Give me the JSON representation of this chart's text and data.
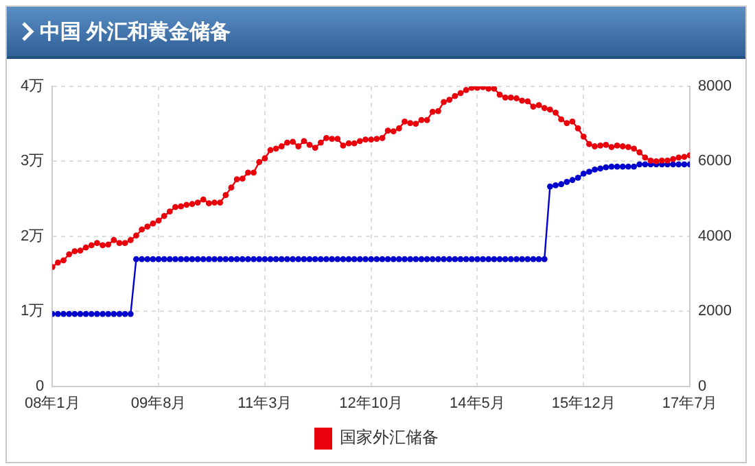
{
  "chart_data": {
    "type": "line",
    "title": "中国 外汇和黄金储备",
    "x": [
      "2008-01",
      "2008-02",
      "2008-03",
      "2008-04",
      "2008-05",
      "2008-06",
      "2008-07",
      "2008-08",
      "2008-09",
      "2008-10",
      "2008-11",
      "2008-12",
      "2009-01",
      "2009-02",
      "2009-03",
      "2009-04",
      "2009-05",
      "2009-06",
      "2009-07",
      "2009-08",
      "2009-09",
      "2009-10",
      "2009-11",
      "2009-12",
      "2010-01",
      "2010-02",
      "2010-03",
      "2010-04",
      "2010-05",
      "2010-06",
      "2010-07",
      "2010-08",
      "2010-09",
      "2010-10",
      "2010-11",
      "2010-12",
      "2011-01",
      "2011-02",
      "2011-03",
      "2011-04",
      "2011-05",
      "2011-06",
      "2011-07",
      "2011-08",
      "2011-09",
      "2011-10",
      "2011-11",
      "2011-12",
      "2012-01",
      "2012-02",
      "2012-03",
      "2012-04",
      "2012-05",
      "2012-06",
      "2012-07",
      "2012-08",
      "2012-09",
      "2012-10",
      "2012-11",
      "2012-12",
      "2013-01",
      "2013-02",
      "2013-03",
      "2013-04",
      "2013-05",
      "2013-06",
      "2013-07",
      "2013-08",
      "2013-09",
      "2013-10",
      "2013-11",
      "2013-12",
      "2014-01",
      "2014-02",
      "2014-03",
      "2014-04",
      "2014-05",
      "2014-06",
      "2014-07",
      "2014-08",
      "2014-09",
      "2014-10",
      "2014-11",
      "2014-12",
      "2015-01",
      "2015-02",
      "2015-03",
      "2015-04",
      "2015-05",
      "2015-06",
      "2015-07",
      "2015-08",
      "2015-09",
      "2015-10",
      "2015-11",
      "2015-12",
      "2016-01",
      "2016-02",
      "2016-03",
      "2016-04",
      "2016-05",
      "2016-06",
      "2016-07",
      "2016-08",
      "2016-09",
      "2016-10",
      "2016-11",
      "2016-12",
      "2017-01",
      "2017-02",
      "2017-03",
      "2017-04",
      "2017-05",
      "2017-06",
      "2017-07"
    ],
    "series": [
      {
        "name": "国家外汇储备",
        "color": "#e8000b",
        "values": [
          1.59,
          1.65,
          1.68,
          1.76,
          1.8,
          1.81,
          1.85,
          1.88,
          1.91,
          1.88,
          1.89,
          1.95,
          1.91,
          1.91,
          1.95,
          2.01,
          2.09,
          2.13,
          2.17,
          2.21,
          2.27,
          2.33,
          2.39,
          2.4,
          2.42,
          2.43,
          2.45,
          2.49,
          2.44,
          2.45,
          2.45,
          2.55,
          2.65,
          2.76,
          2.77,
          2.85,
          2.85,
          2.99,
          3.04,
          3.15,
          3.17,
          3.2,
          3.25,
          3.26,
          3.2,
          3.27,
          3.22,
          3.18,
          3.25,
          3.31,
          3.3,
          3.3,
          3.21,
          3.24,
          3.24,
          3.27,
          3.29,
          3.29,
          3.3,
          3.31,
          3.41,
          3.4,
          3.44,
          3.53,
          3.51,
          3.5,
          3.55,
          3.55,
          3.66,
          3.67,
          3.79,
          3.82,
          3.87,
          3.91,
          3.95,
          3.98,
          3.98,
          3.99,
          3.97,
          3.97,
          3.89,
          3.85,
          3.85,
          3.84,
          3.81,
          3.8,
          3.73,
          3.75,
          3.71,
          3.69,
          3.65,
          3.56,
          3.51,
          3.53,
          3.44,
          3.33,
          3.23,
          3.2,
          3.21,
          3.22,
          3.19,
          3.21,
          3.2,
          3.19,
          3.17,
          3.12,
          3.05,
          3.01,
          3,
          3.01,
          3.01,
          3.03,
          3.05,
          3.06,
          3.08
        ]
      },
      {
        "color": "#0000cc",
        "axis": "y2",
        "values": [
          1930,
          1930,
          1930,
          1930,
          1930,
          1930,
          1930,
          1930,
          1930,
          1930,
          1930,
          1930,
          1930,
          1930,
          1930,
          3390,
          3390,
          3390,
          3390,
          3390,
          3390,
          3390,
          3390,
          3390,
          3390,
          3390,
          3390,
          3390,
          3390,
          3390,
          3390,
          3390,
          3390,
          3390,
          3390,
          3390,
          3390,
          3390,
          3390,
          3390,
          3390,
          3390,
          3390,
          3390,
          3390,
          3390,
          3390,
          3390,
          3390,
          3390,
          3390,
          3390,
          3390,
          3390,
          3390,
          3390,
          3390,
          3390,
          3390,
          3390,
          3390,
          3390,
          3390,
          3390,
          3390,
          3390,
          3390,
          3390,
          3390,
          3390,
          3390,
          3390,
          3390,
          3390,
          3390,
          3390,
          3390,
          3390,
          3390,
          3390,
          3390,
          3390,
          3390,
          3390,
          3390,
          3390,
          3390,
          3390,
          3390,
          5330,
          5360,
          5390,
          5450,
          5500,
          5560,
          5670,
          5720,
          5780,
          5810,
          5840,
          5860,
          5860,
          5860,
          5860,
          5860,
          5920,
          5920,
          5920,
          5920,
          5920,
          5920,
          5920,
          5920,
          5920,
          5920
        ]
      }
    ],
    "xlim": [
      "2008-01",
      "2017-07"
    ],
    "xticks": [
      {
        "value": "2008-01",
        "label": "08年1月"
      },
      {
        "value": "2009-08",
        "label": "09年8月"
      },
      {
        "value": "2011-03",
        "label": "11年3月"
      },
      {
        "value": "2012-10",
        "label": "12年10月"
      },
      {
        "value": "2014-05",
        "label": "14年5月"
      },
      {
        "value": "2015-12",
        "label": "15年12月"
      },
      {
        "value": "2017-07",
        "label": "17年7月"
      }
    ],
    "ylim": [
      0,
      4
    ],
    "yticks": [
      0,
      {
        "value": 1,
        "label": "1万"
      },
      {
        "value": 2,
        "label": "2万"
      },
      {
        "value": 3,
        "label": "3万"
      },
      {
        "value": 4,
        "label": "4万"
      }
    ],
    "y2lim": [
      0,
      8000
    ],
    "y2ticks": [
      0,
      2000,
      4000,
      6000,
      8000
    ],
    "grid": true,
    "legend": "bottom",
    "marker": "circle",
    "line_style": "solid"
  }
}
